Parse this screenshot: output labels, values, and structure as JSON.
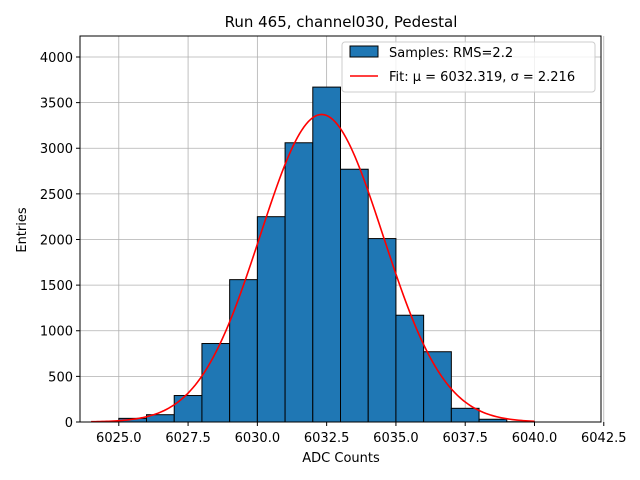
{
  "chart_data": {
    "type": "bar",
    "title": "Run 465, channel030, Pedestal",
    "xlabel": "ADC Counts",
    "ylabel": "Entries",
    "xlim": [
      6023.6,
      6042.4
    ],
    "ylim": [
      0,
      4230
    ],
    "grid": true,
    "legend_placement": "top-right",
    "x_ticks": [
      6025.0,
      6027.5,
      6030.0,
      6032.5,
      6035.0,
      6037.5,
      6040.0,
      6042.5
    ],
    "x_tick_labels": [
      "6025.0",
      "6027.5",
      "6030.0",
      "6032.5",
      "6035.0",
      "6037.5",
      "6040.0",
      "6042.5"
    ],
    "y_ticks": [
      0,
      500,
      1000,
      1500,
      2000,
      2500,
      3000,
      3500,
      4000
    ],
    "y_tick_labels": [
      "0",
      "500",
      "1000",
      "1500",
      "2000",
      "2500",
      "3000",
      "3500",
      "4000"
    ],
    "bin_edges": [
      6025,
      6026,
      6027,
      6028,
      6029,
      6030,
      6031,
      6032,
      6033,
      6034,
      6035,
      6036,
      6037,
      6038,
      6039,
      6040,
      6041
    ],
    "values": [
      40,
      80,
      290,
      860,
      1560,
      2250,
      3060,
      3670,
      2770,
      2010,
      1170,
      770,
      150,
      30,
      3,
      0
    ],
    "bar_color": "#1f77b4",
    "fit": {
      "mu": 6032.319,
      "sigma": 2.216,
      "amplitude": 3370,
      "x_range": [
        6024,
        6040
      ],
      "color": "#ff0000"
    },
    "legend": [
      {
        "label": "Samples: RMS=2.2",
        "kind": "patch",
        "color": "#1f77b4"
      },
      {
        "label": "Fit: μ = 6032.319, σ = 2.216",
        "kind": "line",
        "color": "#ff0000"
      }
    ]
  }
}
